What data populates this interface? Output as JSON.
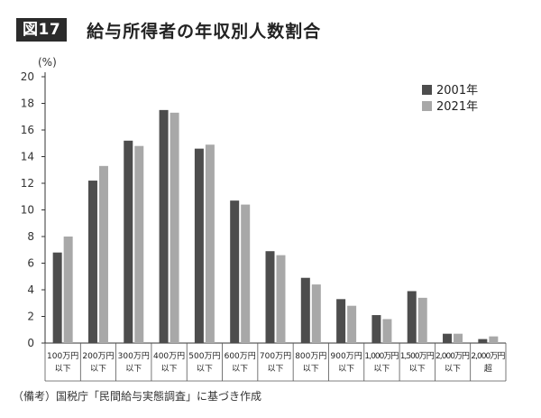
{
  "figure": {
    "badge": "図17",
    "title": "給与所得者の年収別人数割合",
    "note": "（備考）国税庁「民間給与実態調査」に基づき作成"
  },
  "chart_data": {
    "type": "bar",
    "unit_label": "(%)",
    "ylim": [
      0,
      20
    ],
    "yticks": [
      0,
      2,
      4,
      6,
      8,
      10,
      12,
      14,
      16,
      18,
      20
    ],
    "grid": false,
    "legend_position": "top-right",
    "categories": [
      [
        "100万円",
        "以下"
      ],
      [
        "200万円",
        "以下"
      ],
      [
        "300万円",
        "以下"
      ],
      [
        "400万円",
        "以下"
      ],
      [
        "500万円",
        "以下"
      ],
      [
        "600万円",
        "以下"
      ],
      [
        "700万円",
        "以下"
      ],
      [
        "800万円",
        "以下"
      ],
      [
        "900万円",
        "以下"
      ],
      [
        "1,000万円",
        "以下"
      ],
      [
        "1,500万円",
        "以下"
      ],
      [
        "2,000万円",
        "以下"
      ],
      [
        "2,000万円",
        "超"
      ]
    ],
    "series": [
      {
        "name": "2001年",
        "color": "#4d4d4d",
        "values": [
          6.8,
          12.2,
          15.2,
          17.5,
          14.6,
          10.7,
          6.9,
          4.9,
          3.3,
          2.1,
          3.9,
          0.7,
          0.3
        ]
      },
      {
        "name": "2021年",
        "color": "#a8a8a8",
        "values": [
          8.0,
          13.3,
          14.8,
          17.3,
          14.9,
          10.4,
          6.6,
          4.4,
          2.8,
          1.8,
          3.4,
          0.7,
          0.5
        ]
      }
    ]
  }
}
